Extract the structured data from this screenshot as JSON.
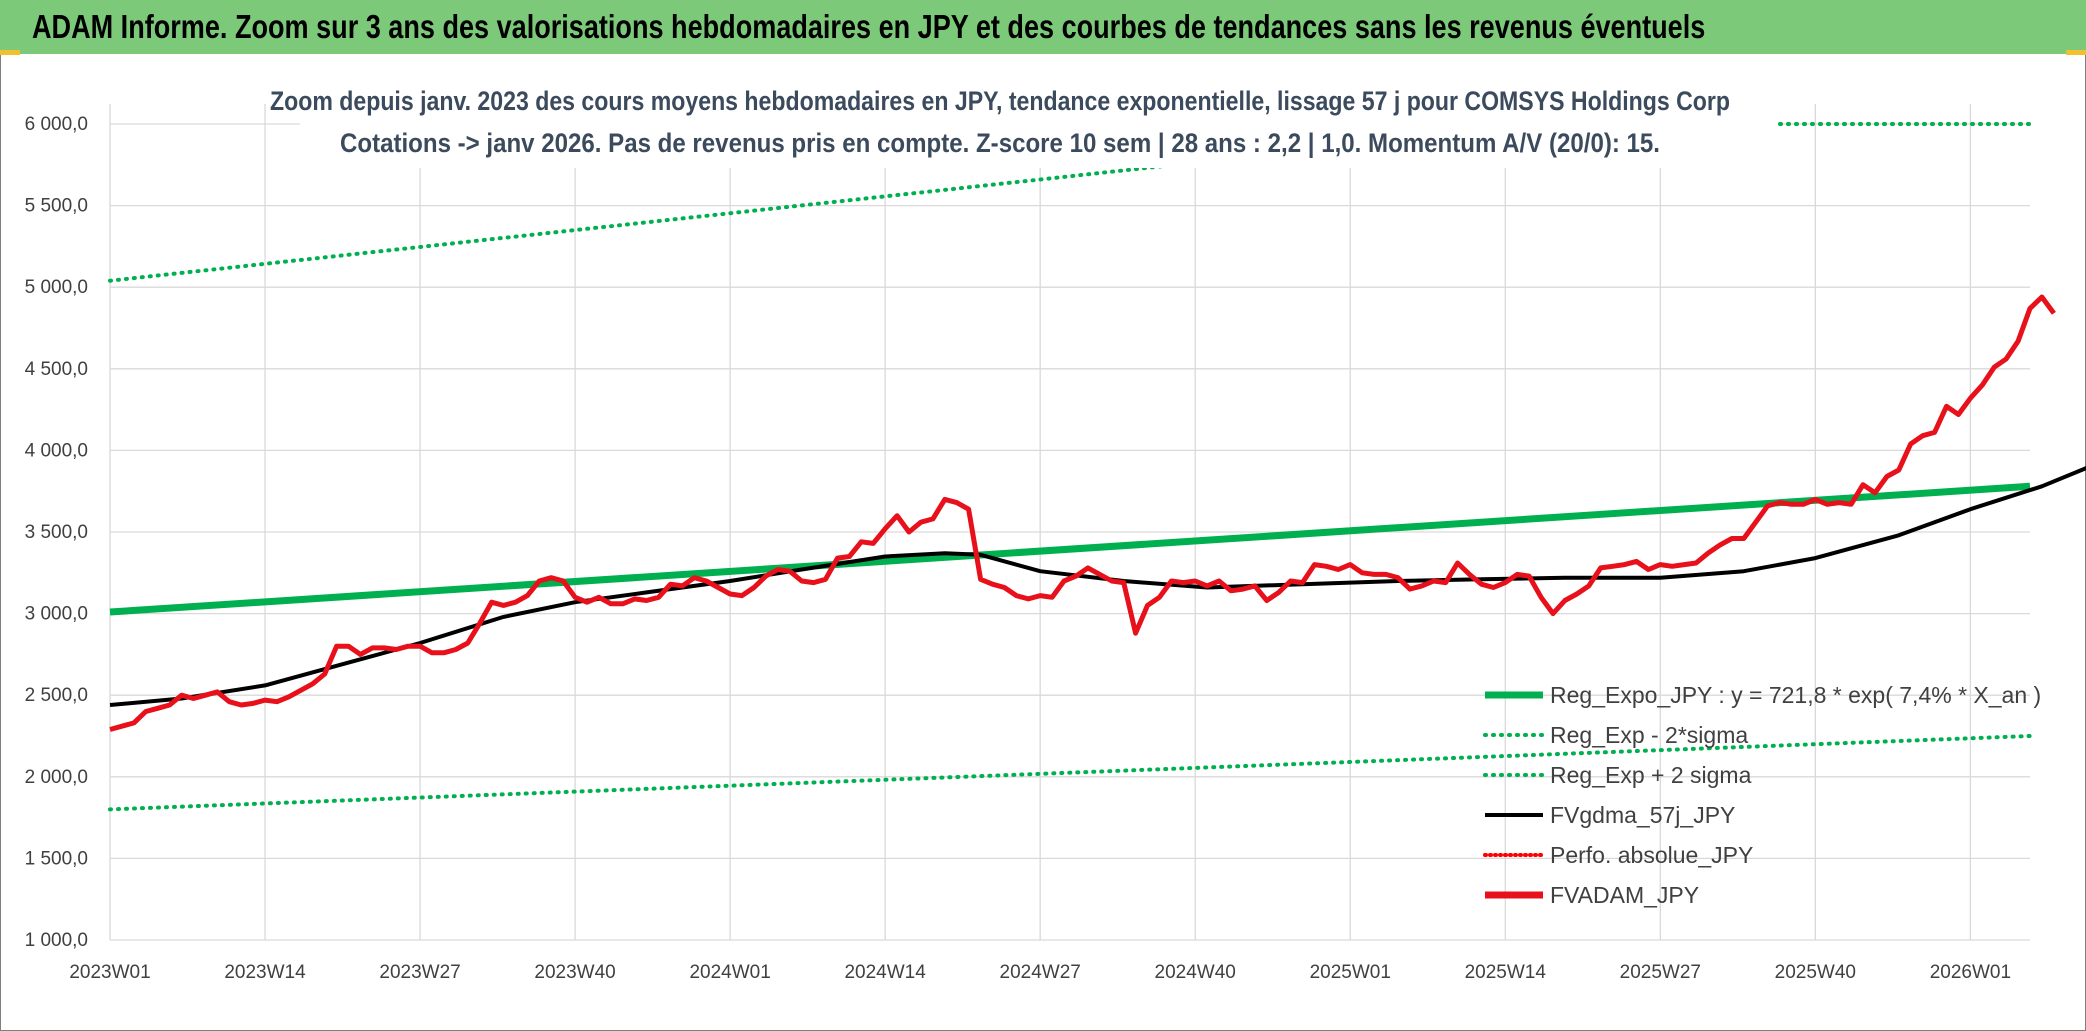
{
  "banner": {
    "title": "ADAM Informe. Zoom sur 3 ans des valorisations hebdomadaires en JPY et des courbes de tendances sans les revenus éventuels"
  },
  "colors": {
    "banner_bg": "#7dc97a",
    "reg_expo": "#00b050",
    "sigma": "#00b050",
    "fvgdma": "#000000",
    "perfo": "#ff0000",
    "fvadam": "#e8101a",
    "grid": "#d9d9d9",
    "subtitle": "#3b4a5c"
  },
  "chart_data": {
    "type": "line",
    "title_lines": [
      "Zoom depuis janv. 2023 des cours moyens hebdomadaires en JPY, tendance exponentielle, lissage 57 j pour COMSYS Holdings Corp",
      "Cotations -> janv 2026. Pas de revenus pris en compte. Z-score 10 sem | 28 ans : 2,2 | 1,0. Momentum A/V (20/0): 15."
    ],
    "y_ticks": [
      "1 000,0",
      "1 500,0",
      "2 000,0",
      "2 500,0",
      "3 000,0",
      "3 500,0",
      "4 000,0",
      "4 500,0",
      "5 000,0",
      "5 500,0",
      "6 000,0"
    ],
    "ylim": [
      1000,
      6000
    ],
    "x_ticks": [
      "2023W01",
      "2023W14",
      "2023W27",
      "2023W40",
      "2024W01",
      "2024W14",
      "2024W27",
      "2024W40",
      "2025W01",
      "2025W14",
      "2025W27",
      "2025W40",
      "2026W01"
    ],
    "x_range_weeks": [
      0,
      161
    ],
    "grid": "horizontal and vertical",
    "legend_position": "bottom-right",
    "series": [
      {
        "name": "Reg_Expo_JPY : y = 721,8 * exp( 7,4% *  X_an )",
        "style": "solid-thick",
        "color": "#00b050",
        "points": [
          [
            0,
            3010
          ],
          [
            161,
            3780
          ]
        ]
      },
      {
        "name": "Reg_Exp - 2*sigma",
        "style": "dotted",
        "color": "#00b050",
        "points": [
          [
            0,
            1800
          ],
          [
            161,
            2250
          ]
        ]
      },
      {
        "name": "Reg_Exp + 2 sigma",
        "style": "dotted",
        "color": "#00b050",
        "points": [
          [
            0,
            5040
          ],
          [
            161,
            6320
          ]
        ]
      },
      {
        "name": "FVgdma_57j_JPY",
        "style": "solid",
        "color": "#000000",
        "points": [
          [
            0,
            2440
          ],
          [
            6,
            2480
          ],
          [
            13,
            2560
          ],
          [
            20,
            2700
          ],
          [
            26,
            2820
          ],
          [
            33,
            2980
          ],
          [
            39,
            3070
          ],
          [
            45,
            3130
          ],
          [
            52,
            3200
          ],
          [
            58,
            3270
          ],
          [
            65,
            3350
          ],
          [
            70,
            3370
          ],
          [
            73,
            3360
          ],
          [
            78,
            3260
          ],
          [
            85,
            3200
          ],
          [
            92,
            3160
          ],
          [
            100,
            3180
          ],
          [
            108,
            3200
          ],
          [
            115,
            3210
          ],
          [
            122,
            3220
          ],
          [
            130,
            3220
          ],
          [
            137,
            3260
          ],
          [
            143,
            3340
          ],
          [
            150,
            3480
          ],
          [
            156,
            3640
          ],
          [
            162,
            3780
          ],
          [
            168,
            3960
          ],
          [
            175,
            4220
          ],
          [
            181,
            4460
          ],
          [
            185,
            4600
          ],
          [
            186,
            4620
          ]
        ]
      },
      {
        "name": "Perfo. absolue_JPY",
        "style": "dotted",
        "color": "#ff0000",
        "points": []
      },
      {
        "name": "FVADAM_JPY",
        "style": "solid-thick",
        "color": "#e8101a",
        "points": [
          [
            0,
            2290
          ],
          [
            2,
            2330
          ],
          [
            3,
            2400
          ],
          [
            4,
            2420
          ],
          [
            5,
            2440
          ],
          [
            6,
            2500
          ],
          [
            7,
            2480
          ],
          [
            8,
            2500
          ],
          [
            9,
            2520
          ],
          [
            10,
            2460
          ],
          [
            11,
            2440
          ],
          [
            12,
            2450
          ],
          [
            13,
            2470
          ],
          [
            14,
            2460
          ],
          [
            15,
            2490
          ],
          [
            16,
            2530
          ],
          [
            17,
            2570
          ],
          [
            18,
            2630
          ],
          [
            19,
            2800
          ],
          [
            20,
            2800
          ],
          [
            21,
            2750
          ],
          [
            22,
            2790
          ],
          [
            23,
            2790
          ],
          [
            24,
            2780
          ],
          [
            25,
            2800
          ],
          [
            26,
            2800
          ],
          [
            27,
            2760
          ],
          [
            28,
            2760
          ],
          [
            29,
            2780
          ],
          [
            30,
            2820
          ],
          [
            31,
            2940
          ],
          [
            32,
            3070
          ],
          [
            33,
            3050
          ],
          [
            34,
            3070
          ],
          [
            35,
            3110
          ],
          [
            36,
            3200
          ],
          [
            37,
            3220
          ],
          [
            38,
            3200
          ],
          [
            39,
            3100
          ],
          [
            40,
            3070
          ],
          [
            41,
            3100
          ],
          [
            42,
            3060
          ],
          [
            43,
            3060
          ],
          [
            44,
            3090
          ],
          [
            45,
            3080
          ],
          [
            46,
            3100
          ],
          [
            47,
            3180
          ],
          [
            48,
            3170
          ],
          [
            49,
            3220
          ],
          [
            50,
            3200
          ],
          [
            51,
            3160
          ],
          [
            52,
            3120
          ],
          [
            53,
            3110
          ],
          [
            54,
            3160
          ],
          [
            55,
            3230
          ],
          [
            56,
            3270
          ],
          [
            57,
            3260
          ],
          [
            58,
            3200
          ],
          [
            59,
            3190
          ],
          [
            60,
            3210
          ],
          [
            61,
            3340
          ],
          [
            62,
            3350
          ],
          [
            63,
            3440
          ],
          [
            64,
            3430
          ],
          [
            65,
            3520
          ],
          [
            66,
            3600
          ],
          [
            67,
            3500
          ],
          [
            68,
            3560
          ],
          [
            69,
            3580
          ],
          [
            70,
            3700
          ],
          [
            71,
            3680
          ],
          [
            72,
            3640
          ],
          [
            73,
            3210
          ],
          [
            74,
            3180
          ],
          [
            75,
            3160
          ],
          [
            76,
            3110
          ],
          [
            77,
            3090
          ],
          [
            78,
            3110
          ],
          [
            79,
            3100
          ],
          [
            80,
            3200
          ],
          [
            81,
            3230
          ],
          [
            82,
            3280
          ],
          [
            83,
            3240
          ],
          [
            84,
            3200
          ],
          [
            85,
            3190
          ],
          [
            86,
            2880
          ],
          [
            87,
            3050
          ],
          [
            88,
            3100
          ],
          [
            89,
            3200
          ],
          [
            90,
            3190
          ],
          [
            91,
            3200
          ],
          [
            92,
            3170
          ],
          [
            93,
            3200
          ],
          [
            94,
            3140
          ],
          [
            95,
            3150
          ],
          [
            96,
            3170
          ],
          [
            97,
            3080
          ],
          [
            98,
            3130
          ],
          [
            99,
            3200
          ],
          [
            100,
            3190
          ],
          [
            101,
            3300
          ],
          [
            102,
            3290
          ],
          [
            103,
            3270
          ],
          [
            104,
            3300
          ],
          [
            105,
            3250
          ],
          [
            106,
            3240
          ],
          [
            107,
            3240
          ],
          [
            108,
            3220
          ],
          [
            109,
            3150
          ],
          [
            110,
            3170
          ],
          [
            111,
            3200
          ],
          [
            112,
            3190
          ],
          [
            113,
            3310
          ],
          [
            114,
            3240
          ],
          [
            115,
            3180
          ],
          [
            116,
            3160
          ],
          [
            117,
            3190
          ],
          [
            118,
            3240
          ],
          [
            119,
            3230
          ],
          [
            120,
            3100
          ],
          [
            121,
            3000
          ],
          [
            122,
            3080
          ],
          [
            123,
            3120
          ],
          [
            124,
            3170
          ],
          [
            125,
            3280
          ],
          [
            126,
            3290
          ],
          [
            127,
            3300
          ],
          [
            128,
            3320
          ],
          [
            129,
            3270
          ],
          [
            130,
            3300
          ],
          [
            131,
            3290
          ],
          [
            132,
            3300
          ],
          [
            133,
            3310
          ],
          [
            134,
            3370
          ],
          [
            135,
            3420
          ],
          [
            136,
            3460
          ],
          [
            137,
            3460
          ],
          [
            138,
            3560
          ],
          [
            139,
            3660
          ],
          [
            140,
            3680
          ],
          [
            141,
            3670
          ],
          [
            142,
            3670
          ],
          [
            143,
            3700
          ],
          [
            144,
            3670
          ],
          [
            145,
            3680
          ],
          [
            146,
            3670
          ],
          [
            147,
            3790
          ],
          [
            148,
            3740
          ],
          [
            149,
            3840
          ],
          [
            150,
            3880
          ],
          [
            151,
            4040
          ],
          [
            152,
            4090
          ],
          [
            153,
            4110
          ],
          [
            154,
            4270
          ],
          [
            155,
            4220
          ],
          [
            156,
            4320
          ],
          [
            157,
            4400
          ],
          [
            158,
            4510
          ],
          [
            159,
            4560
          ],
          [
            160,
            4670
          ],
          [
            161,
            4870
          ],
          [
            162,
            4940
          ],
          [
            163,
            4840
          ]
        ]
      }
    ]
  }
}
